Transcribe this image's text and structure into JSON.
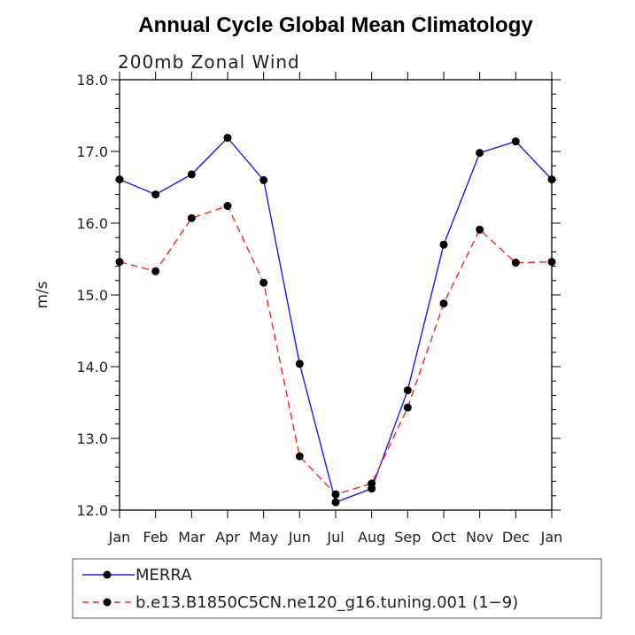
{
  "chart_data": {
    "type": "line",
    "title": "Annual Cycle Global Mean Climatology",
    "subtitle": "200mb Zonal Wind",
    "xlabel": "",
    "ylabel": "m/s",
    "ylim": [
      12.0,
      18.0
    ],
    "yticks": [
      "12.0",
      "13.0",
      "14.0",
      "15.0",
      "16.0",
      "17.0",
      "18.0"
    ],
    "categories": [
      "Jan",
      "Feb",
      "Mar",
      "Apr",
      "May",
      "Jun",
      "Jul",
      "Aug",
      "Sep",
      "Oct",
      "Nov",
      "Dec",
      "Jan"
    ],
    "series": [
      {
        "name": "MERRA",
        "color": "#1a1aff",
        "dash": "solid",
        "values": [
          16.61,
          16.4,
          16.68,
          17.19,
          16.6,
          14.04,
          12.11,
          12.3,
          13.67,
          15.7,
          16.98,
          17.14,
          16.61
        ]
      },
      {
        "name": "b.e13.B1850C5CN.ne120_g16.tuning.001 (1−9)",
        "color": "#ff2020",
        "dash": "dashed",
        "values": [
          15.46,
          15.33,
          16.07,
          16.24,
          15.17,
          12.75,
          12.22,
          12.37,
          13.43,
          14.88,
          15.91,
          15.45,
          15.46
        ]
      }
    ],
    "legend_position": "bottom"
  }
}
